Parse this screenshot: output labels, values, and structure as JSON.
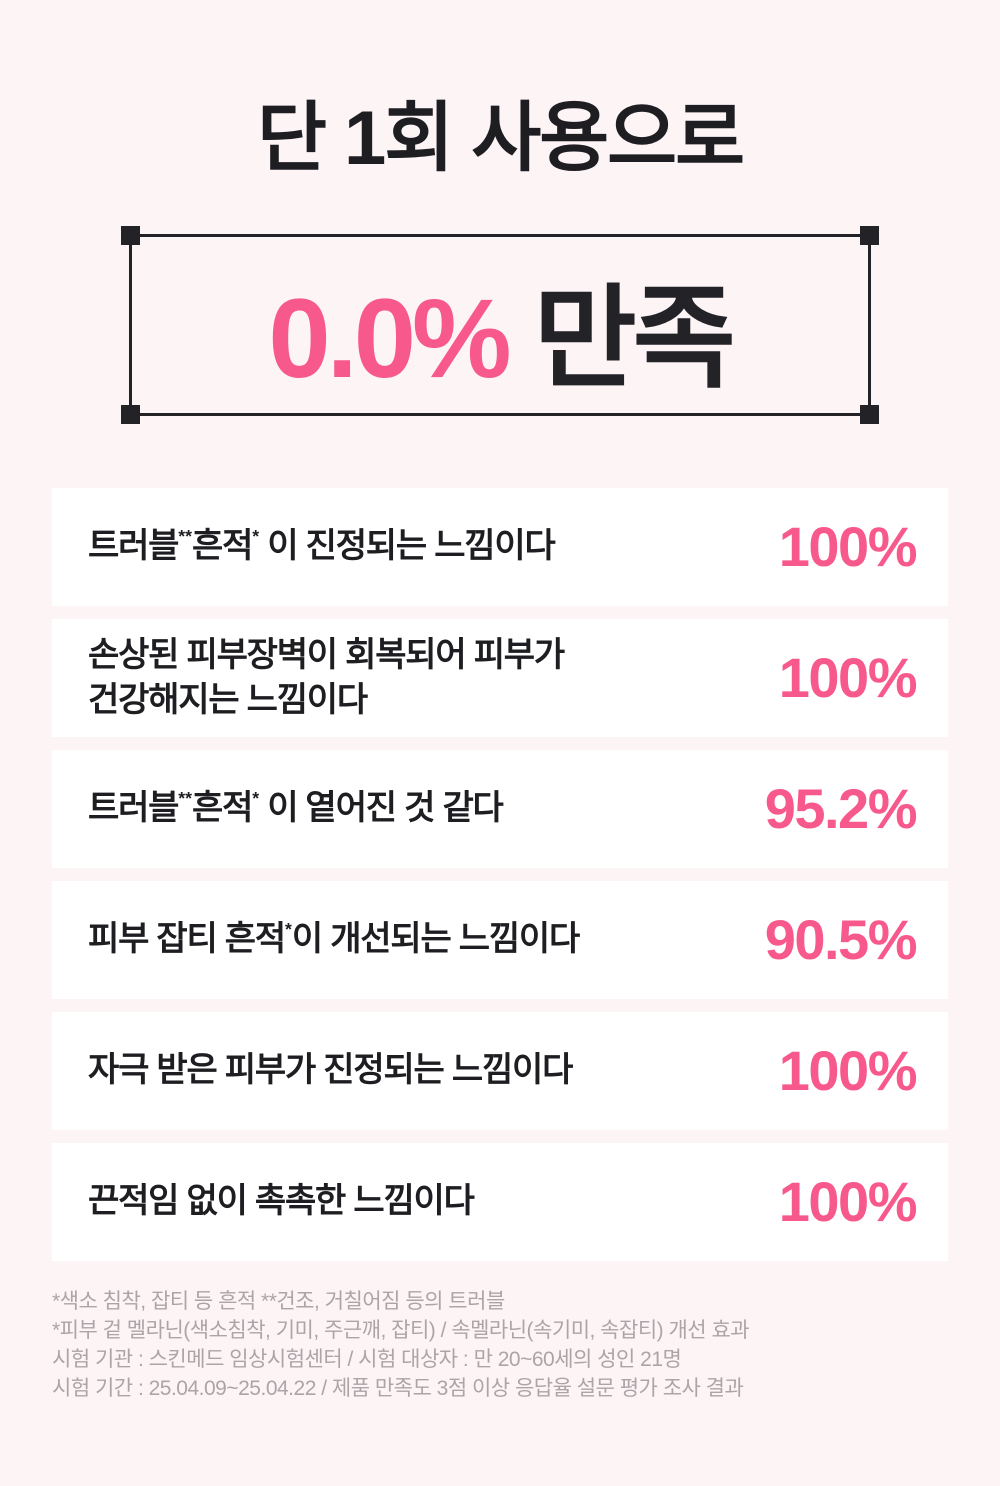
{
  "colors": {
    "accent": "#f8598c",
    "dark_text": "#1e1e22",
    "box_line": "#232327",
    "background": "#fdf4f6",
    "card_background": "#ffffff",
    "footnote_text": "#aca5a8"
  },
  "header": {
    "title": "단 1회 사용으로",
    "highlight_value": "0.0%",
    "highlight_suffix": "만족"
  },
  "results": [
    {
      "segments": [
        {
          "text": "트러블"
        },
        {
          "sup": "**"
        },
        {
          "text": "흔적"
        },
        {
          "sup": "*"
        },
        {
          "text": " 이 진정되는 느낌이다"
        }
      ],
      "value": "100%"
    },
    {
      "segments": [
        {
          "text": "손상된 피부장벽이 회복되어 피부가"
        },
        {
          "br": true
        },
        {
          "text": "건강해지는 느낌이다"
        }
      ],
      "value": "100%"
    },
    {
      "segments": [
        {
          "text": "트러블"
        },
        {
          "sup": "**"
        },
        {
          "text": "흔적"
        },
        {
          "sup": "*"
        },
        {
          "text": " 이 옅어진 것 같다"
        }
      ],
      "value": "95.2%"
    },
    {
      "segments": [
        {
          "text": "피부 잡티 흔적"
        },
        {
          "sup": "*"
        },
        {
          "text": "이 개선되는 느낌이다"
        }
      ],
      "value": "90.5%"
    },
    {
      "segments": [
        {
          "text": "자극 받은 피부가 진정되는 느낌이다"
        }
      ],
      "value": "100%"
    },
    {
      "segments": [
        {
          "text": "끈적임 없이 촉촉한 느낌이다"
        }
      ],
      "value": "100%"
    }
  ],
  "footnotes": [
    "*색소 침착, 잡티 등 흔적 **건조, 거칠어짐 등의 트러블",
    "*피부 겉 멜라닌(색소침착, 기미, 주근깨, 잡티) / 속멜라닌(속기미, 속잡티) 개선 효과",
    "시험 기관 : 스킨메드 임상시험센터 / 시험 대상자 : 만 20~60세의 성인 21명",
    "시험 기간 : 25.04.09~25.04.22 / 제품 만족도 3점 이상 응답율 설문 평가 조사 결과"
  ]
}
